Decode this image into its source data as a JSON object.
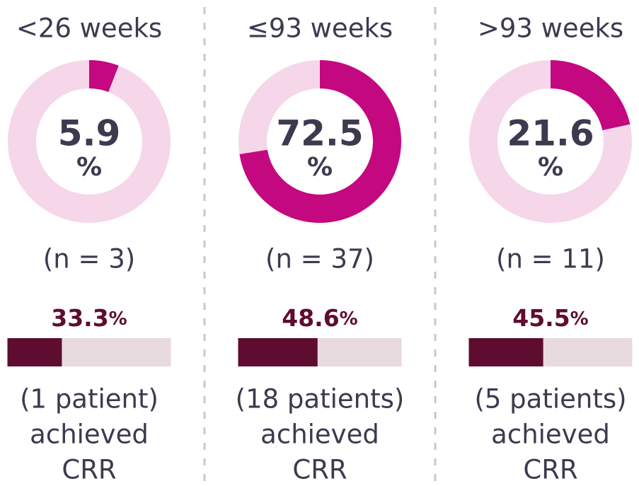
{
  "chart_data": [
    {
      "type": "donut",
      "title": "<26 weeks",
      "value": 5.9,
      "unit": "%",
      "n_label": "(n = 3)",
      "color": "#c4087f",
      "track_color": "#f5d7e9",
      "bar": {
        "value": 33.3,
        "unit": "%",
        "color": "#5e0c2f",
        "track_color": "#e8dadf",
        "caption": [
          "(1 patient)",
          "achieved",
          "CRR"
        ]
      }
    },
    {
      "type": "donut",
      "title": "≤93 weeks",
      "value": 72.5,
      "unit": "%",
      "n_label": "(n = 37)",
      "color": "#c4087f",
      "track_color": "#f5d7e9",
      "bar": {
        "value": 48.6,
        "unit": "%",
        "color": "#5e0c2f",
        "track_color": "#e8dadf",
        "caption": [
          "(18 patients)",
          "achieved",
          "CRR"
        ]
      }
    },
    {
      "type": "donut",
      "title": ">93 weeks",
      "value": 21.6,
      "unit": "%",
      "n_label": "(n = 11)",
      "color": "#c4087f",
      "track_color": "#f5d7e9",
      "bar": {
        "value": 45.5,
        "unit": "%",
        "color": "#5e0c2f",
        "track_color": "#e8dadf",
        "caption": [
          "(5 patients)",
          "achieved",
          "CRR"
        ]
      }
    }
  ]
}
